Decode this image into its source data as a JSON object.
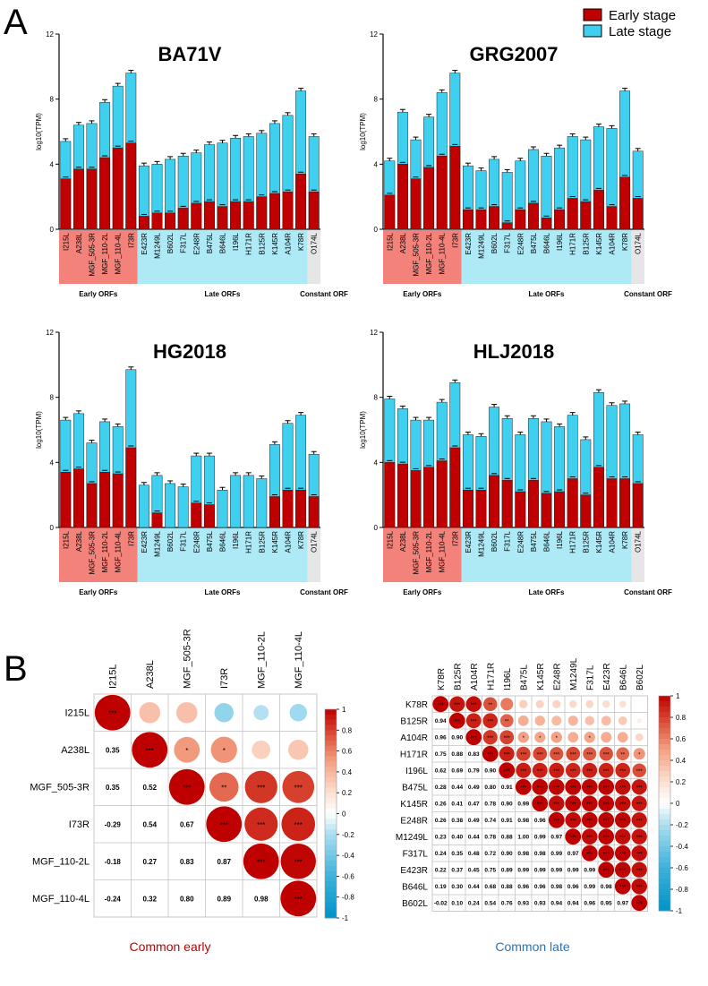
{
  "panel_labels": {
    "a": "A",
    "b": "B"
  },
  "legend": {
    "early": "Early stage",
    "late": "Late stage"
  },
  "colors": {
    "early": "#c00000",
    "late": "#3fd0ef",
    "early_band": "#f2827a",
    "late_band": "#aee9f6",
    "constant_band": "#e6e6e6"
  },
  "groups": {
    "early": "Early ORFs",
    "late": "Late ORFs",
    "constant": "Constant ORF"
  },
  "chart_data": [
    {
      "type": "bar",
      "title": "BA71V",
      "ylabel": "log10(TPM)",
      "ylim": [
        0,
        12
      ],
      "yticks": [
        "0",
        "4",
        "8",
        "12"
      ],
      "categories": [
        "I215L",
        "A238L",
        "MGF_505-3R",
        "MGF_110-2L",
        "MGF_110-4L",
        "I73R",
        "E423R",
        "M1249L",
        "B602L",
        "F317L",
        "E248R",
        "B475L",
        "B646L",
        "I196L",
        "H171R",
        "B125R",
        "K145R",
        "A104R",
        "K78R",
        "O174L"
      ],
      "series": [
        {
          "name": "Early stage",
          "values": [
            3.1,
            3.7,
            3.7,
            4.4,
            5.0,
            5.3,
            0.8,
            1.0,
            1.0,
            1.3,
            1.6,
            1.7,
            1.4,
            1.7,
            1.7,
            2.0,
            2.2,
            2.3,
            3.4,
            2.3
          ]
        },
        {
          "name": "Late stage",
          "values": [
            5.4,
            6.4,
            6.5,
            7.8,
            8.8,
            9.6,
            3.9,
            4.0,
            4.3,
            4.5,
            4.7,
            5.2,
            5.3,
            5.6,
            5.7,
            5.9,
            6.5,
            7.0,
            8.5,
            5.7
          ]
        }
      ]
    },
    {
      "type": "bar",
      "title": "GRG2007",
      "ylabel": "log10(TPM)",
      "ylim": [
        0,
        12
      ],
      "yticks": [
        "0",
        "4",
        "8",
        "12"
      ],
      "categories": [
        "I215L",
        "A238L",
        "MGF_505-3R",
        "MGF_110-2L",
        "MGF_110-4L",
        "I73R",
        "E423R",
        "M1249L",
        "B602L",
        "F317L",
        "E248R",
        "B475L",
        "B646L",
        "I196L",
        "H171R",
        "B125R",
        "K145R",
        "A104R",
        "K78R",
        "O174L"
      ],
      "series": [
        {
          "name": "Early stage",
          "values": [
            2.1,
            4.0,
            3.1,
            3.8,
            4.5,
            5.1,
            1.2,
            1.2,
            1.4,
            0.4,
            1.2,
            1.6,
            0.7,
            1.2,
            1.9,
            1.7,
            2.4,
            1.4,
            3.2,
            1.9
          ]
        },
        {
          "name": "Late stage",
          "values": [
            4.2,
            7.2,
            5.5,
            6.9,
            8.4,
            9.6,
            3.9,
            3.6,
            4.3,
            3.5,
            4.2,
            4.9,
            4.5,
            5.0,
            5.7,
            5.5,
            6.3,
            6.2,
            8.5,
            4.8
          ]
        }
      ]
    },
    {
      "type": "bar",
      "title": "HG2018",
      "ylabel": "log10(TPM)",
      "ylim": [
        0,
        12
      ],
      "yticks": [
        "0",
        "4",
        "8",
        "12"
      ],
      "categories": [
        "I215L",
        "A238L",
        "MGF_505-3R",
        "MGF_110-2L",
        "MGF_110-4L",
        "I73R",
        "E423R",
        "M1249L",
        "B602L",
        "F317L",
        "E248R",
        "B475L",
        "B646L",
        "I196L",
        "H171R",
        "B125R",
        "K145R",
        "A104R",
        "K78R",
        "O174L"
      ],
      "series": [
        {
          "name": "Early stage",
          "values": [
            3.4,
            3.6,
            2.7,
            3.4,
            3.3,
            4.9,
            0,
            0.9,
            0,
            0,
            1.5,
            1.4,
            0,
            0,
            0,
            0,
            1.9,
            2.3,
            2.3,
            1.9
          ]
        },
        {
          "name": "Late stage",
          "values": [
            6.6,
            7.0,
            5.2,
            6.5,
            6.2,
            9.7,
            2.6,
            3.2,
            2.7,
            2.5,
            4.4,
            4.4,
            2.3,
            3.2,
            3.2,
            3.0,
            5.1,
            6.4,
            6.9,
            4.5
          ]
        }
      ]
    },
    {
      "type": "bar",
      "title": "HLJ2018",
      "ylabel": "log10(TPM)",
      "ylim": [
        0,
        12
      ],
      "yticks": [
        "0",
        "4",
        "8",
        "12"
      ],
      "categories": [
        "I215L",
        "A238L",
        "MGF_505-3R",
        "MGF_110-2L",
        "MGF_110-4L",
        "I73R",
        "E423R",
        "M1249L",
        "B602L",
        "F317L",
        "E248R",
        "B475L",
        "B646L",
        "I196L",
        "H171R",
        "B125R",
        "K145R",
        "A104R",
        "K78R",
        "O174L"
      ],
      "series": [
        {
          "name": "Early stage",
          "values": [
            4.0,
            3.9,
            3.5,
            3.7,
            4.1,
            4.9,
            2.3,
            2.3,
            3.2,
            2.9,
            2.2,
            2.9,
            2.1,
            2.2,
            3.0,
            2.0,
            3.7,
            3.0,
            3.0,
            2.7
          ]
        },
        {
          "name": "Late stage",
          "values": [
            7.9,
            7.3,
            6.6,
            6.6,
            7.7,
            8.9,
            5.7,
            5.6,
            7.4,
            6.7,
            5.7,
            6.7,
            6.5,
            6.2,
            6.9,
            5.4,
            8.3,
            7.5,
            7.6,
            5.7
          ]
        }
      ]
    },
    {
      "type": "heatmap",
      "title": "Common early",
      "labels": [
        "I215L",
        "A238L",
        "MGF_505-3R",
        "I73R",
        "MGF_110-2L",
        "MGF_110-4L"
      ],
      "values": [
        [
          1,
          0.35,
          0.35,
          -0.29,
          -0.18,
          -0.24
        ],
        [
          0.35,
          1,
          0.52,
          0.54,
          0.27,
          0.32
        ],
        [
          0.35,
          0.52,
          1,
          0.67,
          0.83,
          0.8
        ],
        [
          -0.29,
          0.54,
          0.67,
          1,
          0.87,
          0.89
        ],
        [
          -0.18,
          0.27,
          0.83,
          0.87,
          1,
          0.98
        ],
        [
          -0.24,
          0.32,
          0.8,
          0.89,
          0.98,
          1
        ]
      ],
      "upper_stars": [
        [
          "***",
          "",
          "",
          "",
          "",
          ""
        ],
        [
          "",
          "***",
          "*",
          "*",
          "",
          ""
        ],
        [
          "",
          "",
          "***",
          "**",
          "***",
          "***"
        ],
        [
          "",
          "",
          "",
          "***",
          "***",
          "***"
        ],
        [
          "",
          "",
          "",
          "",
          "***",
          "***"
        ],
        [
          "",
          "",
          "",
          "",
          "",
          "***"
        ]
      ],
      "colorbar": [
        "1",
        "0.8",
        "0.6",
        "0.4",
        "0.2",
        "0",
        "-0.2",
        "-0.4",
        "-0.6",
        "-0.8",
        "-1"
      ]
    },
    {
      "type": "heatmap",
      "title": "Common late",
      "labels": [
        "K78R",
        "B125R",
        "A104R",
        "H171R",
        "I196L",
        "B475L",
        "K145R",
        "E248R",
        "M1249L",
        "F317L",
        "E423R",
        "B646L",
        "B602L"
      ],
      "values": [
        [
          1,
          0.94,
          0.96,
          0.75,
          0.62,
          0.28,
          0.26,
          0.26,
          0.23,
          0.24,
          0.22,
          0.19,
          -0.02
        ],
        [
          0.94,
          1,
          0.9,
          0.88,
          0.69,
          0.44,
          0.41,
          0.38,
          0.4,
          0.35,
          0.37,
          0.3,
          0.1
        ],
        [
          0.96,
          0.9,
          1,
          0.83,
          0.79,
          0.49,
          0.47,
          0.49,
          0.44,
          0.48,
          0.45,
          0.44,
          0.24
        ],
        [
          0.75,
          0.88,
          0.83,
          1,
          0.9,
          0.8,
          0.78,
          0.74,
          0.78,
          0.72,
          0.75,
          0.68,
          0.54
        ],
        [
          0.62,
          0.69,
          0.79,
          0.9,
          1,
          0.91,
          0.9,
          0.91,
          0.88,
          0.9,
          0.89,
          0.88,
          0.76
        ],
        [
          0.28,
          0.44,
          0.49,
          0.8,
          0.91,
          1,
          0.99,
          0.98,
          1.0,
          0.98,
          0.99,
          0.96,
          0.93
        ],
        [
          0.26,
          0.41,
          0.47,
          0.78,
          0.9,
          0.99,
          1,
          0.96,
          0.99,
          0.98,
          0.99,
          0.96,
          0.93
        ],
        [
          0.26,
          0.38,
          0.49,
          0.74,
          0.91,
          0.98,
          0.96,
          1,
          0.97,
          0.99,
          0.99,
          0.98,
          0.94
        ],
        [
          0.23,
          0.4,
          0.44,
          0.78,
          0.88,
          1.0,
          0.99,
          0.97,
          1,
          0.97,
          0.99,
          0.96,
          0.94
        ],
        [
          0.24,
          0.35,
          0.48,
          0.72,
          0.9,
          0.98,
          0.98,
          0.99,
          0.97,
          1,
          0.99,
          0.99,
          0.96
        ],
        [
          0.22,
          0.37,
          0.45,
          0.75,
          0.89,
          0.99,
          0.99,
          0.99,
          0.99,
          0.99,
          1,
          0.98,
          0.95
        ],
        [
          0.19,
          0.3,
          0.44,
          0.68,
          0.88,
          0.96,
          0.96,
          0.98,
          0.96,
          0.99,
          0.98,
          1,
          0.97
        ],
        [
          -0.02,
          0.1,
          0.24,
          0.54,
          0.76,
          0.93,
          0.93,
          0.94,
          0.94,
          0.96,
          0.95,
          0.97,
          1
        ]
      ],
      "upper_stars": [
        [
          "***",
          "***",
          "***",
          "**",
          "",
          "",
          "",
          "",
          "",
          "",
          "",
          "",
          ""
        ],
        [
          "",
          "***",
          "***",
          "***",
          "**",
          "",
          "",
          "",
          "",
          "",
          "",
          "",
          ""
        ],
        [
          "",
          "",
          "***",
          "***",
          "***",
          "*",
          "*",
          "*",
          "",
          "*",
          "",
          "",
          ""
        ],
        [
          "",
          "",
          "",
          "***",
          "***",
          "***",
          "***",
          "***",
          "***",
          "***",
          "***",
          "**",
          "*"
        ],
        [
          "",
          "",
          "",
          "",
          "***",
          "***",
          "***",
          "***",
          "***",
          "***",
          "***",
          "***",
          "***"
        ],
        [
          "",
          "",
          "",
          "",
          "",
          "***",
          "***",
          "***",
          "***",
          "***",
          "***",
          "***",
          "***"
        ],
        [
          "",
          "",
          "",
          "",
          "",
          "",
          "***",
          "***",
          "***",
          "***",
          "***",
          "***",
          "***"
        ],
        [
          "",
          "",
          "",
          "",
          "",
          "",
          "",
          "***",
          "***",
          "***",
          "***",
          "***",
          "***"
        ],
        [
          "",
          "",
          "",
          "",
          "",
          "",
          "",
          "",
          "***",
          "***",
          "***",
          "***",
          "***"
        ],
        [
          "",
          "",
          "",
          "",
          "",
          "",
          "",
          "",
          "",
          "***",
          "***",
          "***",
          "***"
        ],
        [
          "",
          "",
          "",
          "",
          "",
          "",
          "",
          "",
          "",
          "",
          "***",
          "***",
          "***"
        ],
        [
          "",
          "",
          "",
          "",
          "",
          "",
          "",
          "",
          "",
          "",
          "",
          "***",
          "***"
        ],
        [
          "",
          "",
          "",
          "",
          "",
          "",
          "",
          "",
          "",
          "",
          "",
          "",
          "***"
        ]
      ],
      "colorbar": [
        "1",
        "0.8",
        "0.6",
        "0.4",
        "0.2",
        "0",
        "-0.2",
        "-0.4",
        "-0.6",
        "-0.8",
        "-1"
      ]
    }
  ]
}
